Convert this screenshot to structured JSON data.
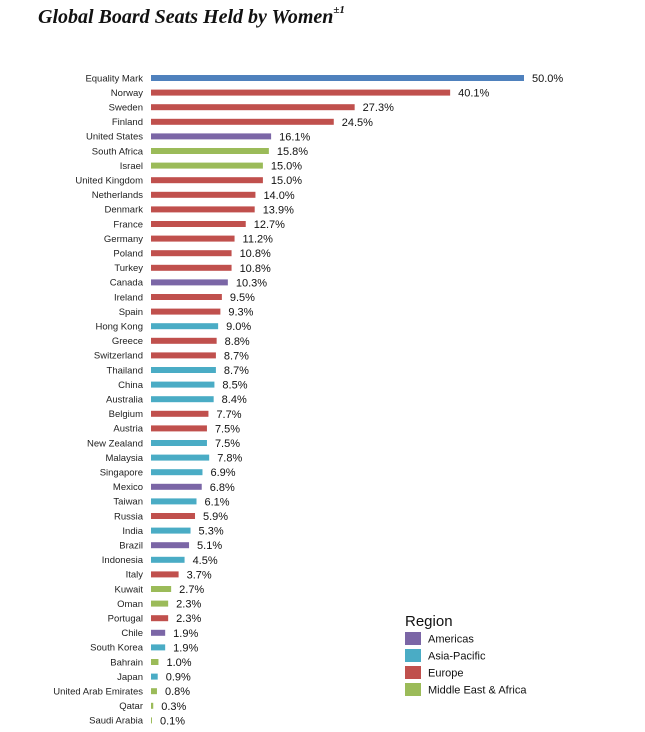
{
  "chart_data": {
    "type": "bar",
    "orientation": "horizontal",
    "title": "Global Board Seats Held by Women",
    "title_superscript": "±1",
    "xlim": [
      0,
      50
    ],
    "grid": false,
    "legend": {
      "title": "Region",
      "placement": "bottom-right",
      "entries": [
        {
          "name": "Americas",
          "color": "#7b66a6"
        },
        {
          "name": "Asia-Pacific",
          "color": "#4aacc5"
        },
        {
          "name": "Europe",
          "color": "#c0504d"
        },
        {
          "name": "Middle East & Africa",
          "color": "#9bbb59"
        }
      ]
    },
    "special_color": "#4f81bd",
    "bars": [
      {
        "category": "Equality Mark",
        "value": 50.0,
        "label": "50.0%",
        "region": "special"
      },
      {
        "category": "Norway",
        "value": 40.1,
        "label": "40.1%",
        "region": "Europe"
      },
      {
        "category": "Sweden",
        "value": 27.3,
        "label": "27.3%",
        "region": "Europe"
      },
      {
        "category": "Finland",
        "value": 24.5,
        "label": "24.5%",
        "region": "Europe"
      },
      {
        "category": "United States",
        "value": 16.1,
        "label": "16.1%",
        "region": "Americas"
      },
      {
        "category": "South Africa",
        "value": 15.8,
        "label": "15.8%",
        "region": "Middle East & Africa"
      },
      {
        "category": "Israel",
        "value": 15.0,
        "label": "15.0%",
        "region": "Middle East & Africa"
      },
      {
        "category": "United Kingdom",
        "value": 15.0,
        "label": "15.0%",
        "region": "Europe"
      },
      {
        "category": "Netherlands",
        "value": 14.0,
        "label": "14.0%",
        "region": "Europe"
      },
      {
        "category": "Denmark",
        "value": 13.9,
        "label": "13.9%",
        "region": "Europe"
      },
      {
        "category": "France",
        "value": 12.7,
        "label": "12.7%",
        "region": "Europe"
      },
      {
        "category": "Germany",
        "value": 11.2,
        "label": "11.2%",
        "region": "Europe"
      },
      {
        "category": "Poland",
        "value": 10.8,
        "label": "10.8%",
        "region": "Europe"
      },
      {
        "category": "Turkey",
        "value": 10.8,
        "label": "10.8%",
        "region": "Europe"
      },
      {
        "category": "Canada",
        "value": 10.3,
        "label": "10.3%",
        "region": "Americas"
      },
      {
        "category": "Ireland",
        "value": 9.5,
        "label": "9.5%",
        "region": "Europe"
      },
      {
        "category": "Spain",
        "value": 9.3,
        "label": "9.3%",
        "region": "Europe"
      },
      {
        "category": "Hong Kong",
        "value": 9.0,
        "label": "9.0%",
        "region": "Asia-Pacific"
      },
      {
        "category": "Greece",
        "value": 8.8,
        "label": "8.8%",
        "region": "Europe"
      },
      {
        "category": "Switzerland",
        "value": 8.7,
        "label": "8.7%",
        "region": "Europe"
      },
      {
        "category": "Thailand",
        "value": 8.7,
        "label": "8.7%",
        "region": "Asia-Pacific"
      },
      {
        "category": "China",
        "value": 8.5,
        "label": "8.5%",
        "region": "Asia-Pacific"
      },
      {
        "category": "Australia",
        "value": 8.4,
        "label": "8.4%",
        "region": "Asia-Pacific"
      },
      {
        "category": "Belgium",
        "value": 7.7,
        "label": "7.7%",
        "region": "Europe"
      },
      {
        "category": "Austria",
        "value": 7.5,
        "label": "7.5%",
        "region": "Europe"
      },
      {
        "category": "New Zealand",
        "value": 7.5,
        "label": "7.5%",
        "region": "Asia-Pacific"
      },
      {
        "category": "Malaysia",
        "value": 7.8,
        "label": "7.8%",
        "region": "Asia-Pacific"
      },
      {
        "category": "Singapore",
        "value": 6.9,
        "label": "6.9%",
        "region": "Asia-Pacific"
      },
      {
        "category": "Mexico",
        "value": 6.8,
        "label": "6.8%",
        "region": "Americas"
      },
      {
        "category": "Taiwan",
        "value": 6.1,
        "label": "6.1%",
        "region": "Asia-Pacific"
      },
      {
        "category": "Russia",
        "value": 5.9,
        "label": "5.9%",
        "region": "Europe"
      },
      {
        "category": "India",
        "value": 5.3,
        "label": "5.3%",
        "region": "Asia-Pacific"
      },
      {
        "category": "Brazil",
        "value": 5.1,
        "label": "5.1%",
        "region": "Americas"
      },
      {
        "category": "Indonesia",
        "value": 4.5,
        "label": "4.5%",
        "region": "Asia-Pacific"
      },
      {
        "category": "Italy",
        "value": 3.7,
        "label": "3.7%",
        "region": "Europe"
      },
      {
        "category": "Kuwait",
        "value": 2.7,
        "label": "2.7%",
        "region": "Middle East & Africa"
      },
      {
        "category": "Oman",
        "value": 2.3,
        "label": "2.3%",
        "region": "Middle East & Africa"
      },
      {
        "category": "Portugal",
        "value": 2.3,
        "label": "2.3%",
        "region": "Europe"
      },
      {
        "category": "Chile",
        "value": 1.9,
        "label": "1.9%",
        "region": "Americas"
      },
      {
        "category": "South Korea",
        "value": 1.9,
        "label": "1.9%",
        "region": "Asia-Pacific"
      },
      {
        "category": "Bahrain",
        "value": 1.0,
        "label": "1.0%",
        "region": "Middle East & Africa"
      },
      {
        "category": "Japan",
        "value": 0.9,
        "label": "0.9%",
        "region": "Asia-Pacific"
      },
      {
        "category": "United Arab Emirates",
        "value": 0.8,
        "label": "0.8%",
        "region": "Middle East & Africa"
      },
      {
        "category": "Qatar",
        "value": 0.3,
        "label": "0.3%",
        "region": "Middle East & Africa"
      },
      {
        "category": "Saudi Arabia",
        "value": 0.1,
        "label": "0.1%",
        "region": "Middle East & Africa"
      }
    ]
  }
}
